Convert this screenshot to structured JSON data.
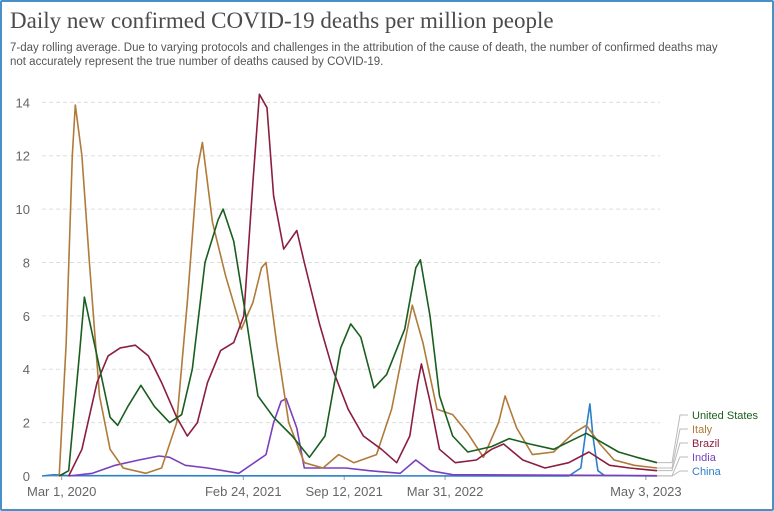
{
  "chart_data": {
    "type": "line",
    "title": "Daily new confirmed COVID-19 deaths per million people",
    "subtitle": "7-day rolling average. Due to varying protocols and challenges in the attribution of the cause of death, the number of confirmed deaths may not accurately represent the true number of deaths caused by COVID-19.",
    "xlim": [
      "2020-01-22",
      "2023-05-31"
    ],
    "ylim": [
      0,
      14.5
    ],
    "yticks": [
      0,
      2,
      4,
      6,
      8,
      10,
      12,
      14
    ],
    "xticks": [
      {
        "date": "2020-03-01",
        "label": "Mar 1, 2020"
      },
      {
        "date": "2021-02-24",
        "label": "Feb 24, 2021"
      },
      {
        "date": "2021-09-12",
        "label": "Sep 12, 2021"
      },
      {
        "date": "2022-03-31",
        "label": "Mar 31, 2022"
      },
      {
        "date": "2023-05-03",
        "label": "May 3, 2023"
      }
    ],
    "grid": true,
    "legend": "right",
    "series": [
      {
        "name": "United States",
        "color": "#1a5e1f",
        "points": [
          [
            "2020-02-25",
            0
          ],
          [
            "2020-03-15",
            0.2
          ],
          [
            "2020-04-05",
            4.5
          ],
          [
            "2020-04-15",
            6.7
          ],
          [
            "2020-05-10",
            4.5
          ],
          [
            "2020-06-05",
            2.2
          ],
          [
            "2020-06-20",
            1.9
          ],
          [
            "2020-07-10",
            2.6
          ],
          [
            "2020-08-05",
            3.4
          ],
          [
            "2020-09-01",
            2.6
          ],
          [
            "2020-10-01",
            2.0
          ],
          [
            "2020-10-25",
            2.3
          ],
          [
            "2020-11-15",
            4.0
          ],
          [
            "2020-12-10",
            8.0
          ],
          [
            "2021-01-05",
            9.6
          ],
          [
            "2021-01-15",
            10.0
          ],
          [
            "2021-02-05",
            8.8
          ],
          [
            "2021-03-01",
            6.0
          ],
          [
            "2021-03-25",
            3.0
          ],
          [
            "2021-04-25",
            2.2
          ],
          [
            "2021-06-01",
            1.5
          ],
          [
            "2021-07-05",
            0.7
          ],
          [
            "2021-08-05",
            1.5
          ],
          [
            "2021-09-05",
            4.8
          ],
          [
            "2021-09-25",
            5.7
          ],
          [
            "2021-10-15",
            5.2
          ],
          [
            "2021-11-10",
            3.3
          ],
          [
            "2021-12-05",
            3.8
          ],
          [
            "2022-01-10",
            5.5
          ],
          [
            "2022-02-01",
            7.8
          ],
          [
            "2022-02-10",
            8.1
          ],
          [
            "2022-03-01",
            6.0
          ],
          [
            "2022-03-20",
            3.0
          ],
          [
            "2022-04-15",
            1.5
          ],
          [
            "2022-05-15",
            0.9
          ],
          [
            "2022-07-01",
            1.1
          ],
          [
            "2022-08-05",
            1.4
          ],
          [
            "2022-09-15",
            1.2
          ],
          [
            "2022-11-01",
            1.0
          ],
          [
            "2023-01-05",
            1.6
          ],
          [
            "2023-02-01",
            1.3
          ],
          [
            "2023-03-10",
            0.9
          ],
          [
            "2023-04-15",
            0.7
          ],
          [
            "2023-05-25",
            0.5
          ]
        ]
      },
      {
        "name": "Italy",
        "color": "#b07a3a",
        "points": [
          [
            "2020-02-25",
            0
          ],
          [
            "2020-03-10",
            5.0
          ],
          [
            "2020-03-22",
            12.0
          ],
          [
            "2020-03-28",
            13.9
          ],
          [
            "2020-04-10",
            12.0
          ],
          [
            "2020-04-25",
            8.0
          ],
          [
            "2020-05-15",
            3.0
          ],
          [
            "2020-06-05",
            1.0
          ],
          [
            "2020-07-01",
            0.3
          ],
          [
            "2020-08-15",
            0.1
          ],
          [
            "2020-09-15",
            0.3
          ],
          [
            "2020-10-15",
            2.0
          ],
          [
            "2020-11-05",
            6.5
          ],
          [
            "2020-11-25",
            11.5
          ],
          [
            "2020-12-05",
            12.5
          ],
          [
            "2020-12-25",
            9.5
          ],
          [
            "2021-01-20",
            7.5
          ],
          [
            "2021-02-20",
            5.5
          ],
          [
            "2021-03-15",
            6.5
          ],
          [
            "2021-04-01",
            7.8
          ],
          [
            "2021-04-10",
            8.0
          ],
          [
            "2021-05-01",
            5.0
          ],
          [
            "2021-05-25",
            2.0
          ],
          [
            "2021-06-25",
            0.5
          ],
          [
            "2021-08-01",
            0.3
          ],
          [
            "2021-09-01",
            0.8
          ],
          [
            "2021-10-01",
            0.5
          ],
          [
            "2021-11-15",
            0.8
          ],
          [
            "2021-12-15",
            2.5
          ],
          [
            "2022-01-10",
            5.0
          ],
          [
            "2022-01-25",
            6.4
          ],
          [
            "2022-02-15",
            5.0
          ],
          [
            "2022-03-15",
            2.5
          ],
          [
            "2022-04-15",
            2.3
          ],
          [
            "2022-05-15",
            1.6
          ],
          [
            "2022-06-15",
            0.7
          ],
          [
            "2022-07-15",
            2.0
          ],
          [
            "2022-07-28",
            3.0
          ],
          [
            "2022-08-20",
            1.8
          ],
          [
            "2022-09-20",
            0.8
          ],
          [
            "2022-11-01",
            0.9
          ],
          [
            "2022-12-10",
            1.6
          ],
          [
            "2023-01-05",
            1.9
          ],
          [
            "2023-02-01",
            1.2
          ],
          [
            "2023-03-01",
            0.6
          ],
          [
            "2023-04-10",
            0.4
          ],
          [
            "2023-05-25",
            0.3
          ]
        ]
      },
      {
        "name": "Brazil",
        "color": "#8b1e3f",
        "points": [
          [
            "2020-03-15",
            0
          ],
          [
            "2020-04-10",
            1.0
          ],
          [
            "2020-05-10",
            3.5
          ],
          [
            "2020-06-01",
            4.5
          ],
          [
            "2020-06-25",
            4.8
          ],
          [
            "2020-07-25",
            4.9
          ],
          [
            "2020-08-20",
            4.5
          ],
          [
            "2020-09-15",
            3.5
          ],
          [
            "2020-10-15",
            2.2
          ],
          [
            "2020-11-05",
            1.5
          ],
          [
            "2020-11-25",
            2.0
          ],
          [
            "2020-12-15",
            3.5
          ],
          [
            "2021-01-10",
            4.7
          ],
          [
            "2021-02-05",
            5.0
          ],
          [
            "2021-02-25",
            6.0
          ],
          [
            "2021-03-15",
            11.0
          ],
          [
            "2021-03-28",
            14.3
          ],
          [
            "2021-04-12",
            13.8
          ],
          [
            "2021-04-25",
            10.5
          ],
          [
            "2021-05-15",
            8.5
          ],
          [
            "2021-06-10",
            9.2
          ],
          [
            "2021-06-25",
            8.0
          ],
          [
            "2021-07-25",
            5.7
          ],
          [
            "2021-08-20",
            4.0
          ],
          [
            "2021-09-20",
            2.5
          ],
          [
            "2021-10-20",
            1.5
          ],
          [
            "2021-11-25",
            1.0
          ],
          [
            "2021-12-25",
            0.5
          ],
          [
            "2022-01-20",
            1.5
          ],
          [
            "2022-02-05",
            3.5
          ],
          [
            "2022-02-12",
            4.2
          ],
          [
            "2022-03-01",
            2.8
          ],
          [
            "2022-03-20",
            1.0
          ],
          [
            "2022-04-20",
            0.5
          ],
          [
            "2022-06-01",
            0.6
          ],
          [
            "2022-07-01",
            1.0
          ],
          [
            "2022-07-25",
            1.2
          ],
          [
            "2022-09-01",
            0.6
          ],
          [
            "2022-10-15",
            0.3
          ],
          [
            "2022-12-01",
            0.5
          ],
          [
            "2023-01-10",
            0.9
          ],
          [
            "2023-02-20",
            0.4
          ],
          [
            "2023-04-01",
            0.3
          ],
          [
            "2023-05-25",
            0.2
          ]
        ]
      },
      {
        "name": "India",
        "color": "#7a3fbf",
        "points": [
          [
            "2020-03-15",
            0
          ],
          [
            "2020-05-01",
            0.1
          ],
          [
            "2020-06-15",
            0.4
          ],
          [
            "2020-08-01",
            0.6
          ],
          [
            "2020-09-10",
            0.75
          ],
          [
            "2020-10-01",
            0.7
          ],
          [
            "2020-11-01",
            0.4
          ],
          [
            "2020-12-15",
            0.3
          ],
          [
            "2021-02-15",
            0.1
          ],
          [
            "2021-04-10",
            0.8
          ],
          [
            "2021-04-25",
            2.0
          ],
          [
            "2021-05-10",
            2.8
          ],
          [
            "2021-05-20",
            2.9
          ],
          [
            "2021-06-10",
            1.8
          ],
          [
            "2021-06-25",
            0.3
          ],
          [
            "2021-08-01",
            0.3
          ],
          [
            "2021-09-15",
            0.3
          ],
          [
            "2021-11-01",
            0.2
          ],
          [
            "2022-01-01",
            0.1
          ],
          [
            "2022-02-01",
            0.6
          ],
          [
            "2022-03-01",
            0.2
          ],
          [
            "2022-04-15",
            0.05
          ],
          [
            "2023-05-25",
            0.01
          ]
        ]
      },
      {
        "name": "China",
        "color": "#2c7fc9",
        "points": [
          [
            "2020-01-22",
            0
          ],
          [
            "2020-02-15",
            0.05
          ],
          [
            "2020-03-15",
            0.01
          ],
          [
            "2022-12-01",
            0
          ],
          [
            "2022-12-25",
            0.3
          ],
          [
            "2023-01-05",
            1.8
          ],
          [
            "2023-01-12",
            2.7
          ],
          [
            "2023-01-18",
            1.5
          ],
          [
            "2023-01-28",
            0.2
          ],
          [
            "2023-02-10",
            0.02
          ],
          [
            "2023-05-25",
            0
          ]
        ]
      }
    ]
  }
}
